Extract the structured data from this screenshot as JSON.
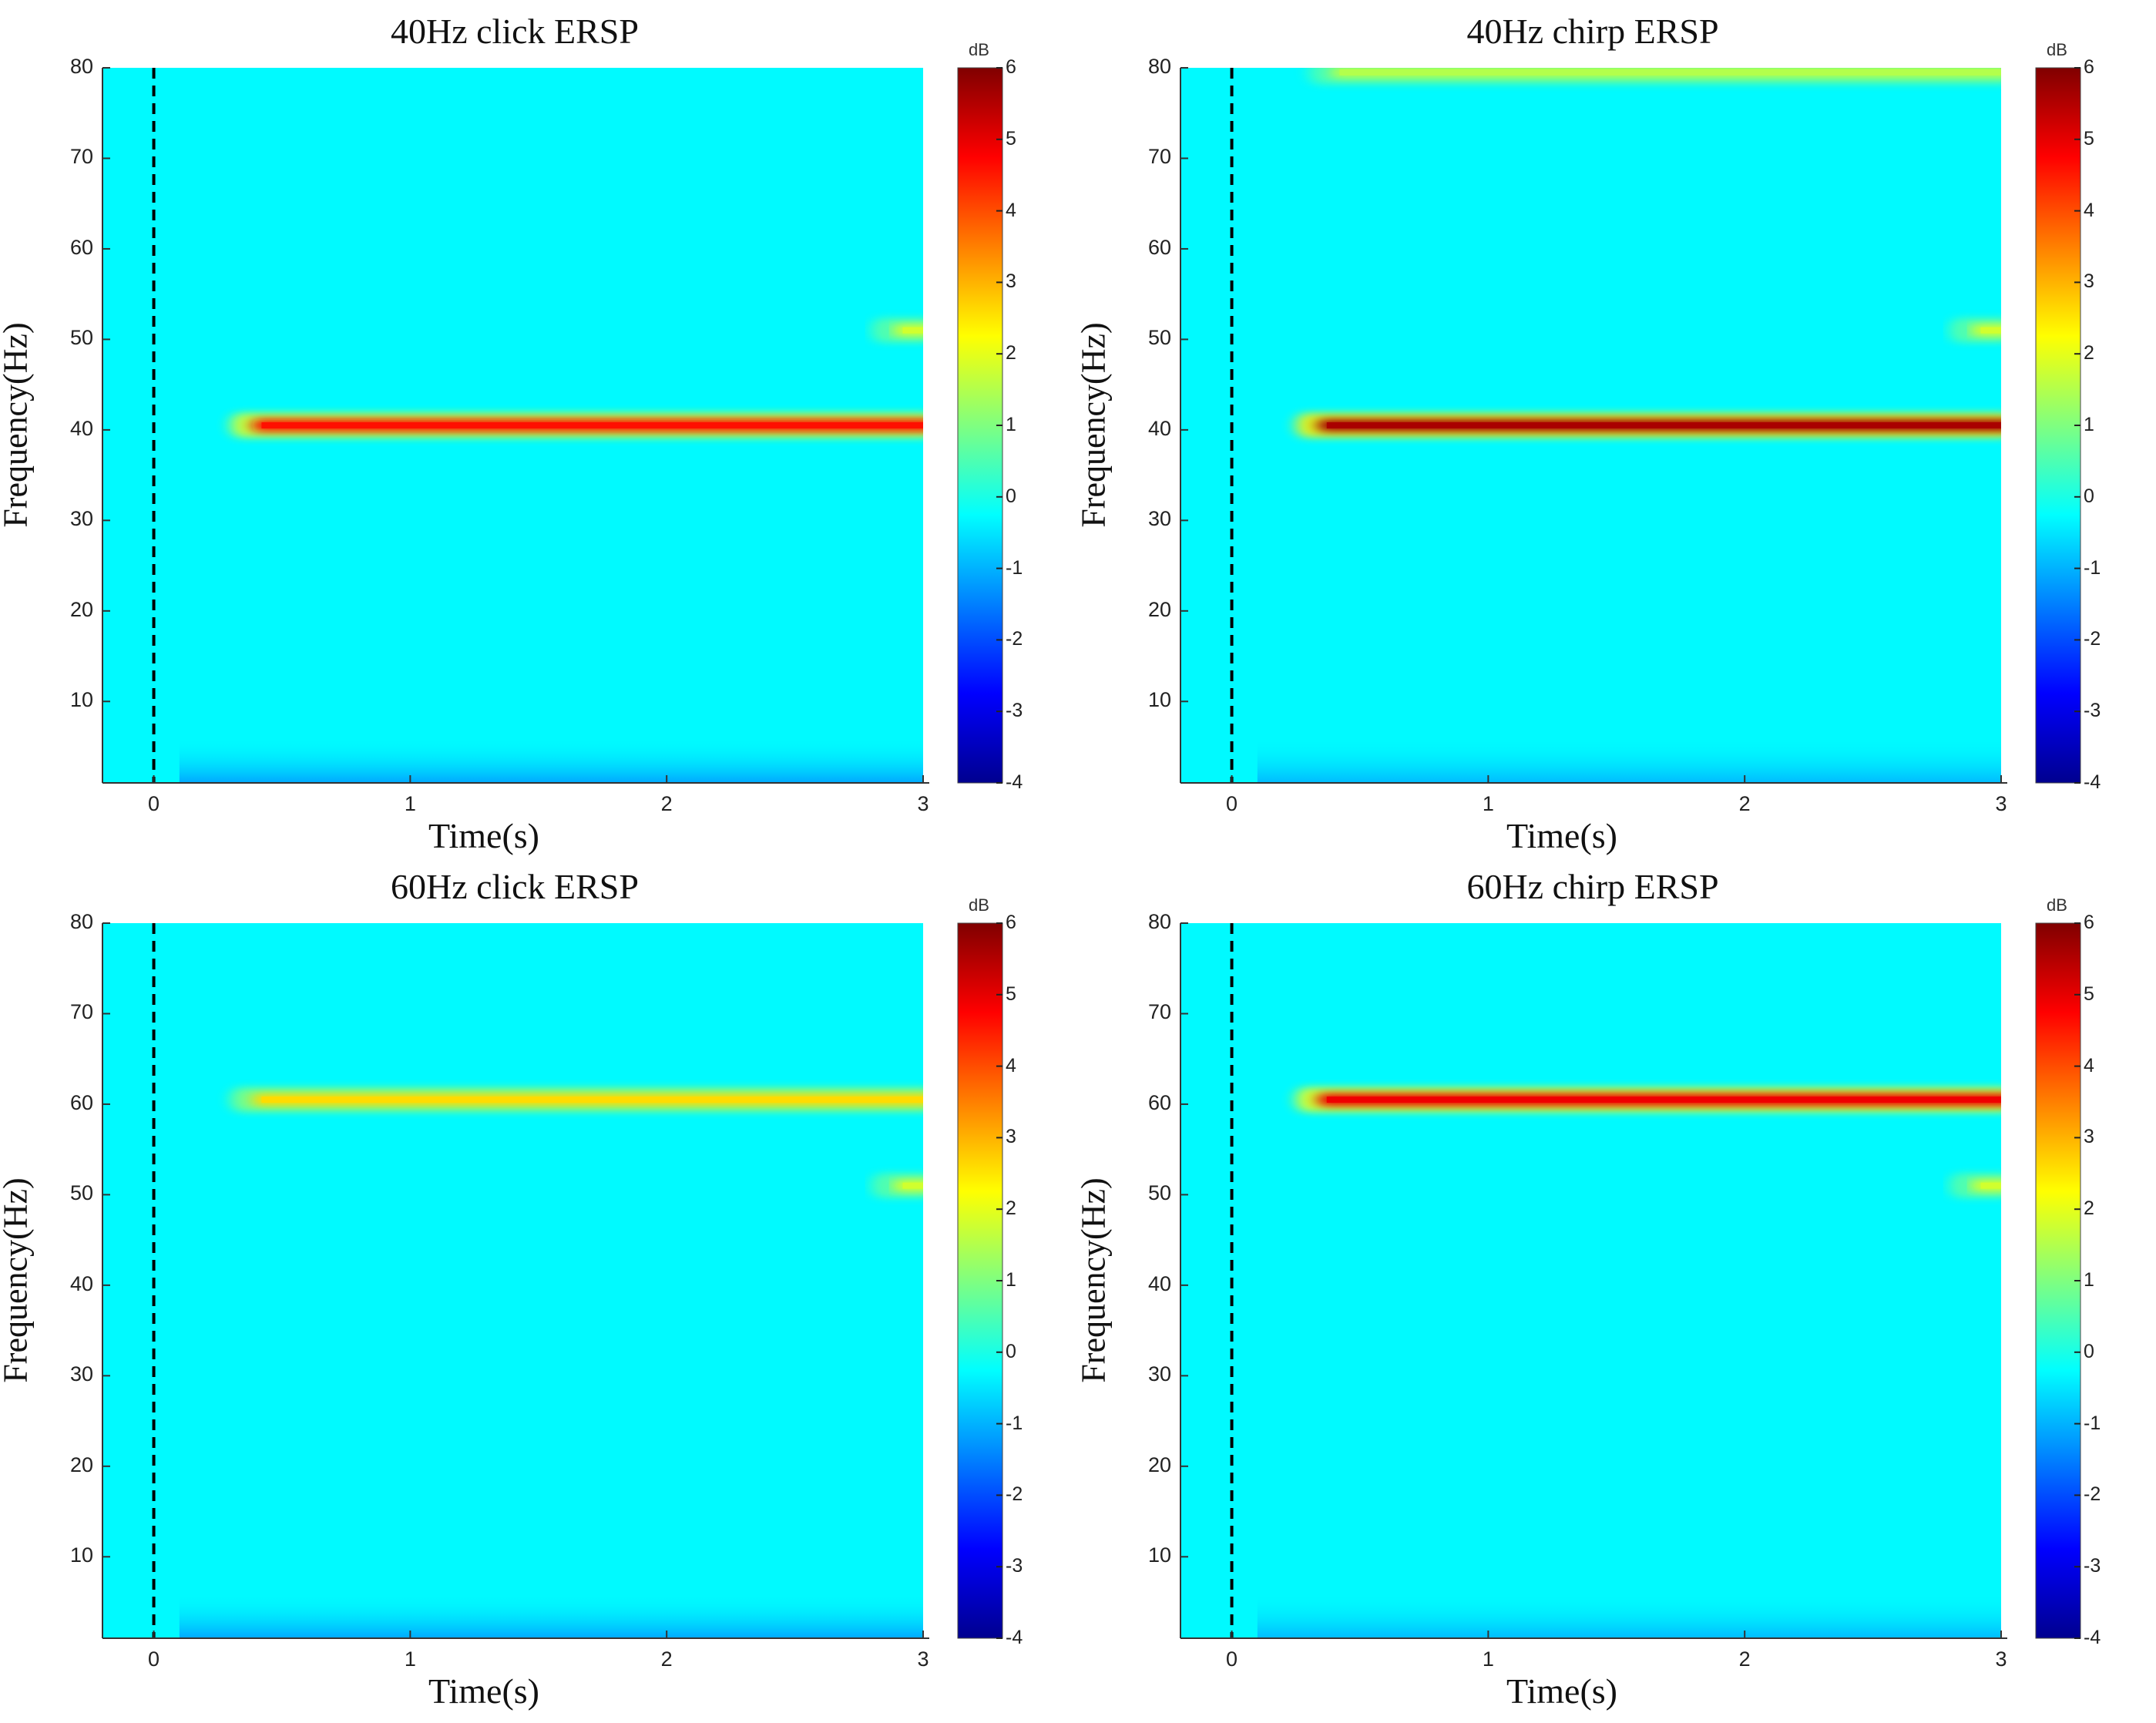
{
  "colors": {
    "background": "#00ffff",
    "stimulus_line": "#000000",
    "colormap": [
      "#00008f",
      "#0000ff",
      "#00ffff",
      "#ffff00",
      "#ff0000",
      "#800000"
    ]
  },
  "chart_data": [
    {
      "type": "heatmap",
      "title": "40Hz click ERSP",
      "xlabel": "Time(s)",
      "ylabel": "Frequency(Hz)",
      "colorbar_label": "dB",
      "xlim": [
        -0.2,
        3.0
      ],
      "ylim": [
        1,
        80
      ],
      "xticks": [
        0,
        1,
        2,
        3
      ],
      "yticks": [
        10,
        20,
        30,
        40,
        50,
        60,
        70,
        80
      ],
      "clim": [
        -4,
        6
      ],
      "cticks": [
        -4,
        -3,
        -2,
        -1,
        0,
        1,
        2,
        3,
        4,
        5,
        6
      ],
      "stimulus_onset_s": 0,
      "baseline_db": -0.3,
      "bands": [
        {
          "freq_hz": 40.5,
          "start_s": 0.3,
          "end_s": 3.0,
          "peak_db": 4.6
        },
        {
          "freq_hz": 51,
          "start_s": 2.8,
          "end_s": 3.0,
          "peak_db": 1.8
        }
      ],
      "low_freq_dip": {
        "freq_max_hz": 6,
        "min_db": -1.2
      }
    },
    {
      "type": "heatmap",
      "title": "40Hz chirp ERSP",
      "xlabel": "Time(s)",
      "ylabel": "Frequency(Hz)",
      "colorbar_label": "dB",
      "xlim": [
        -0.2,
        3.0
      ],
      "ylim": [
        1,
        80
      ],
      "xticks": [
        0,
        1,
        2,
        3
      ],
      "yticks": [
        10,
        20,
        30,
        40,
        50,
        60,
        70,
        80
      ],
      "clim": [
        -4,
        6
      ],
      "cticks": [
        -4,
        -3,
        -2,
        -1,
        0,
        1,
        2,
        3,
        4,
        5,
        6
      ],
      "stimulus_onset_s": 0,
      "baseline_db": -0.3,
      "bands": [
        {
          "freq_hz": 40.5,
          "start_s": 0.25,
          "end_s": 3.0,
          "peak_db": 5.6
        },
        {
          "freq_hz": 51,
          "start_s": 2.8,
          "end_s": 3.0,
          "peak_db": 1.8
        },
        {
          "freq_hz": 79.5,
          "start_s": 0.3,
          "end_s": 3.0,
          "peak_db": 1.5
        }
      ],
      "low_freq_dip": {
        "freq_max_hz": 6,
        "min_db": -1.0
      }
    },
    {
      "type": "heatmap",
      "title": "60Hz click ERSP",
      "xlabel": "Time(s)",
      "ylabel": "Frequency(Hz)",
      "colorbar_label": "dB",
      "xlim": [
        -0.2,
        3.0
      ],
      "ylim": [
        1,
        80
      ],
      "xticks": [
        0,
        1,
        2,
        3
      ],
      "yticks": [
        10,
        20,
        30,
        40,
        50,
        60,
        70,
        80
      ],
      "clim": [
        -4,
        6
      ],
      "cticks": [
        -4,
        -3,
        -2,
        -1,
        0,
        1,
        2,
        3,
        4,
        5,
        6
      ],
      "stimulus_onset_s": 0,
      "baseline_db": -0.3,
      "bands": [
        {
          "freq_hz": 60.5,
          "start_s": 0.3,
          "end_s": 3.0,
          "peak_db": 2.6
        },
        {
          "freq_hz": 51,
          "start_s": 2.8,
          "end_s": 3.0,
          "peak_db": 1.8
        }
      ],
      "low_freq_dip": {
        "freq_max_hz": 6,
        "min_db": -1.2
      }
    },
    {
      "type": "heatmap",
      "title": "60Hz chirp ERSP",
      "xlabel": "Time(s)",
      "ylabel": "Frequency(Hz)",
      "colorbar_label": "dB",
      "xlim": [
        -0.2,
        3.0
      ],
      "ylim": [
        1,
        80
      ],
      "xticks": [
        0,
        1,
        2,
        3
      ],
      "yticks": [
        10,
        20,
        30,
        40,
        50,
        60,
        70,
        80
      ],
      "clim": [
        -4,
        6
      ],
      "cticks": [
        -4,
        -3,
        -2,
        -1,
        0,
        1,
        2,
        3,
        4,
        5,
        6
      ],
      "stimulus_onset_s": 0,
      "baseline_db": -0.3,
      "bands": [
        {
          "freq_hz": 60.5,
          "start_s": 0.25,
          "end_s": 3.0,
          "peak_db": 4.9
        },
        {
          "freq_hz": 51,
          "start_s": 2.8,
          "end_s": 3.0,
          "peak_db": 1.8
        }
      ],
      "low_freq_dip": {
        "freq_max_hz": 6,
        "min_db": -1.0
      }
    }
  ]
}
